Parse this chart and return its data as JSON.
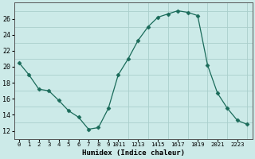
{
  "x": [
    0,
    1,
    2,
    3,
    4,
    5,
    6,
    7,
    8,
    9,
    10,
    11,
    12,
    13,
    14,
    15,
    16,
    17,
    18,
    19,
    20,
    21,
    22,
    23
  ],
  "y": [
    20.5,
    19.0,
    17.2,
    17.0,
    15.8,
    14.5,
    13.7,
    12.2,
    12.4,
    14.8,
    19.0,
    21.0,
    23.3,
    25.0,
    26.2,
    26.6,
    27.0,
    26.8,
    26.4,
    20.2,
    16.7,
    14.8,
    13.3,
    12.8
  ],
  "line_color": "#1a6b5a",
  "marker": "D",
  "marker_size": 2.5,
  "bg_color": "#cceae8",
  "grid_color": "#aacfcc",
  "xlabel": "Humidex (Indice chaleur)",
  "xlim": [
    -0.5,
    23.5
  ],
  "ylim": [
    11,
    28
  ],
  "yticks": [
    12,
    14,
    16,
    18,
    20,
    22,
    24,
    26
  ],
  "x_tick_positions": [
    0,
    1,
    2,
    3,
    4,
    5,
    6,
    7,
    8,
    9,
    10,
    12,
    14,
    16,
    18,
    20,
    22
  ],
  "x_tick_labels": [
    "0",
    "1",
    "2",
    "3",
    "4",
    "5",
    "6",
    "7",
    "8",
    "9",
    "1011",
    "1213",
    "1415",
    "1617",
    "1819",
    "2021",
    "2223"
  ]
}
